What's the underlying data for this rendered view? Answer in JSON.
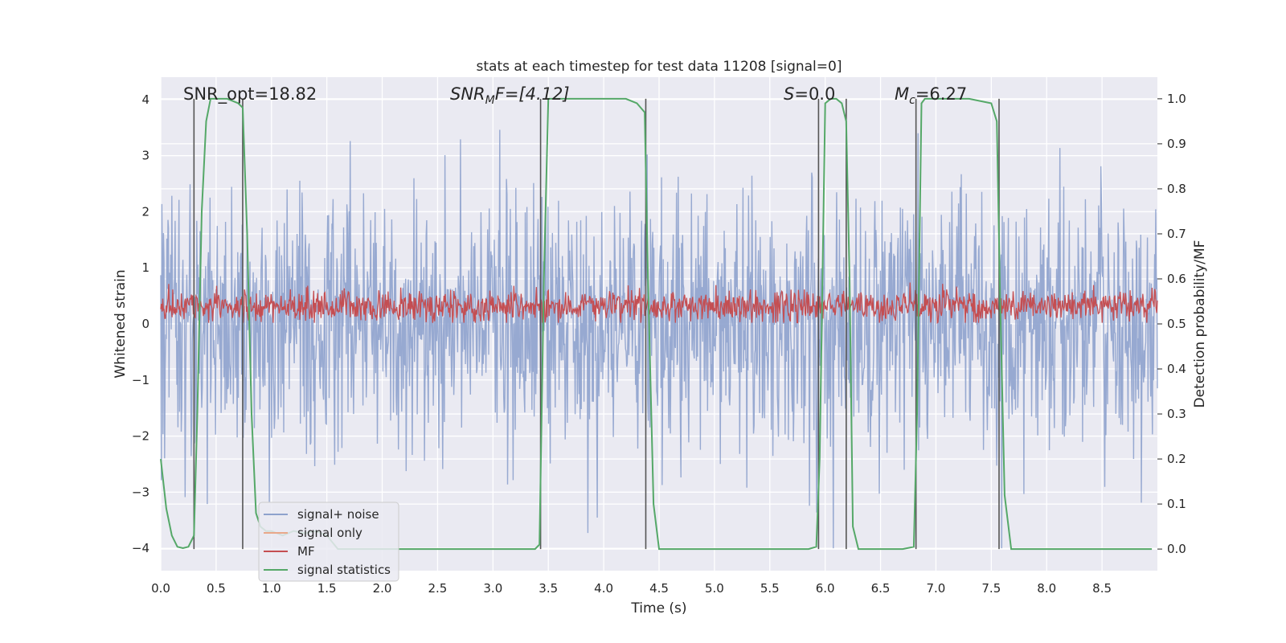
{
  "chart_data": {
    "type": "line",
    "title": "stats at each timestep for test data 11208 [signal=0]",
    "xlabel": "Time (s)",
    "ylabel": "Whitened strain",
    "y2label": "Detection probability/MF",
    "xlim": [
      0,
      9
    ],
    "ylim": [
      -4.4,
      4.4
    ],
    "y2lim": [
      -0.048,
      1.048
    ],
    "xticks": [
      "0.0",
      "0.5",
      "1.0",
      "1.5",
      "2.0",
      "2.5",
      "3.0",
      "3.5",
      "4.0",
      "4.5",
      "5.0",
      "5.5",
      "6.0",
      "6.5",
      "7.0",
      "7.5",
      "8.0",
      "8.5"
    ],
    "yticks": [
      "4",
      "3",
      "2",
      "1",
      "0",
      "−1",
      "−2",
      "−3",
      "−4"
    ],
    "y2ticks": [
      "1.0",
      "0.9",
      "0.8",
      "0.7",
      "0.6",
      "0.5",
      "0.4",
      "0.3",
      "0.2",
      "0.1",
      "0.0"
    ],
    "annotations": {
      "snr_opt": "SNR_opt=18.82",
      "snr_mf_prefix": "SNR",
      "snr_mf_sub": "M",
      "snr_mf_suffix": "F=[4.12]",
      "s_label": "S",
      "s_value": "=0.0",
      "mc_label": "M",
      "mc_sub": "c",
      "mc_value": "=6.27"
    },
    "legend": {
      "position": "lower-left",
      "entries": [
        "signal+ noise",
        "signal only",
        "MF",
        "signal statistics"
      ]
    },
    "colors": {
      "noise": "#8ea2cd",
      "signal_only": "#e9a88a",
      "mf": "#c44e52",
      "stats": "#55a868",
      "vlines": "#555555",
      "background": "#eaeaf2",
      "grid": "#ffffff"
    },
    "series": [
      {
        "name": "signal+ noise",
        "description_range": [
          -4.0,
          4.0
        ],
        "noise_sigma": 1.1
      },
      {
        "name": "signal only",
        "values": []
      },
      {
        "name": "MF",
        "range": [
          0.0,
          0.95
        ]
      },
      {
        "name": "signal statistics",
        "x": [
          0.0,
          0.05,
          0.1,
          0.15,
          0.2,
          0.25,
          0.3,
          0.33,
          0.37,
          0.41,
          0.45,
          0.5,
          0.55,
          0.6,
          0.65,
          0.7,
          0.74,
          0.78,
          0.82,
          0.86,
          0.9,
          0.95,
          1.0,
          1.1,
          1.2,
          1.3,
          1.4,
          1.5,
          1.6,
          1.8,
          2.0,
          2.5,
          3.0,
          3.3,
          3.38,
          3.42,
          3.46,
          3.5,
          3.6,
          4.0,
          4.2,
          4.3,
          4.37,
          4.4,
          4.45,
          4.5,
          4.6,
          5.0,
          5.5,
          5.85,
          5.92,
          5.95,
          6.0,
          6.05,
          6.1,
          6.15,
          6.19,
          6.22,
          6.25,
          6.3,
          6.4,
          6.7,
          6.8,
          6.83,
          6.87,
          6.9,
          6.95,
          7.0,
          7.3,
          7.5,
          7.55,
          7.58,
          7.62,
          7.68,
          7.75,
          7.9,
          8.5,
          8.95
        ],
        "values": [
          0.2,
          0.09,
          0.03,
          0.005,
          0.002,
          0.005,
          0.03,
          0.3,
          0.75,
          0.95,
          1.0,
          1.0,
          1.0,
          1.0,
          0.995,
          0.99,
          0.98,
          0.7,
          0.3,
          0.08,
          0.05,
          0.04,
          0.04,
          0.03,
          0.04,
          0.035,
          0.04,
          0.03,
          0.0,
          0.0,
          0.0,
          0.0,
          0.0,
          0.0,
          0.0,
          0.01,
          0.6,
          1.0,
          1.0,
          1.0,
          1.0,
          0.99,
          0.97,
          0.6,
          0.1,
          0.0,
          0.0,
          0.0,
          0.0,
          0.0,
          0.005,
          0.2,
          0.99,
          1.0,
          1.0,
          0.99,
          0.95,
          0.6,
          0.05,
          0.0,
          0.0,
          0.0,
          0.005,
          0.3,
          0.99,
          1.0,
          1.0,
          1.0,
          1.0,
          0.99,
          0.95,
          0.55,
          0.12,
          0.0,
          0.0,
          0.0,
          0.0,
          0.0
        ]
      }
    ],
    "vlines_x": [
      0.3,
      0.74,
      3.43,
      4.38,
      5.94,
      6.19,
      6.82,
      7.57
    ]
  }
}
